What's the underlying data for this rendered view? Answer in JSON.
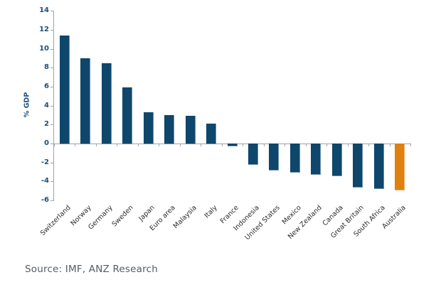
{
  "chart_data": {
    "type": "bar",
    "ylabel": "% GDP",
    "categories": [
      "Switzerland",
      "Norway",
      "Germany",
      "Sweden",
      "Japan",
      "Euro area",
      "Malaysia",
      "Italy",
      "France",
      "Indonesia",
      "United States",
      "Mexico",
      "New Zealand",
      "Canada",
      "Great Britain",
      "South Africa",
      "Australia"
    ],
    "values": [
      11.4,
      9.0,
      8.5,
      5.9,
      3.3,
      3.0,
      2.9,
      2.1,
      -0.2,
      -2.2,
      -2.8,
      -3.0,
      -3.2,
      -3.4,
      -4.6,
      -4.7,
      -4.9
    ],
    "highlight_index": 16,
    "ylim": [
      -6,
      14
    ],
    "yticks": [
      14,
      12,
      10,
      8,
      6,
      4,
      2,
      0,
      -2,
      -4,
      -6
    ],
    "grid": false,
    "legend": "none",
    "bar_orientation": "vertical",
    "x_label_rotation_deg": -45
  },
  "footer": {
    "source": "Source: IMF, ANZ Research"
  },
  "style": {
    "bar_color": "#0e476b",
    "highlight_color": "#df800f",
    "axis_color": "#a3a3a3",
    "y_tick_label_color": "#1d5179",
    "x_tick_label_color": "#2b2b2b",
    "source_text_color": "#525c66",
    "background_color": "#ffffff"
  }
}
